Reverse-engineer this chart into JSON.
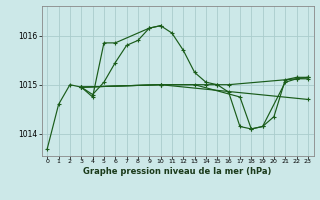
{
  "bg_color": "#cce8e8",
  "grid_color": "#aacccc",
  "line_color": "#1a5c1a",
  "xlabel": "Graphe pression niveau de la mer (hPa)",
  "x_ticks": [
    0,
    1,
    2,
    3,
    4,
    5,
    6,
    7,
    8,
    9,
    10,
    11,
    12,
    13,
    14,
    15,
    16,
    17,
    18,
    19,
    20,
    21,
    22,
    23
  ],
  "yticks": [
    1014,
    1015,
    1016
  ],
  "ylim": [
    1013.55,
    1016.6
  ],
  "xlim": [
    -0.5,
    23.5
  ],
  "line1_x": [
    0,
    1,
    2,
    3,
    4,
    5,
    6,
    7,
    8,
    9,
    10,
    11,
    12,
    13,
    14,
    15,
    16,
    17,
    18,
    19,
    20,
    21,
    22,
    23
  ],
  "line1_y": [
    1013.7,
    1014.6,
    1015.0,
    1014.95,
    1014.8,
    1015.05,
    1015.45,
    1015.8,
    1015.9,
    1016.15,
    1016.2,
    1016.05,
    1015.7,
    1015.25,
    1015.05,
    1015.0,
    1014.85,
    1014.15,
    1014.1,
    1014.15,
    1014.35,
    1015.1,
    1015.15,
    1015.15
  ],
  "line2_x": [
    3,
    4,
    5,
    6,
    9,
    10
  ],
  "line2_y": [
    1014.95,
    1014.75,
    1015.85,
    1015.85,
    1016.15,
    1016.2
  ],
  "line3_x": [
    3,
    10,
    13,
    17,
    18,
    19,
    21,
    22,
    23
  ],
  "line3_y": [
    1014.95,
    1015.0,
    1015.0,
    1014.75,
    1014.1,
    1014.15,
    1015.05,
    1015.12,
    1015.12
  ],
  "line4_x": [
    3,
    10,
    14,
    15,
    16,
    22,
    23
  ],
  "line4_y": [
    1014.95,
    1015.0,
    1015.0,
    1015.0,
    1015.0,
    1015.12,
    1015.15
  ],
  "line5_x": [
    3,
    10,
    23
  ],
  "line5_y": [
    1014.95,
    1015.0,
    1014.7
  ]
}
